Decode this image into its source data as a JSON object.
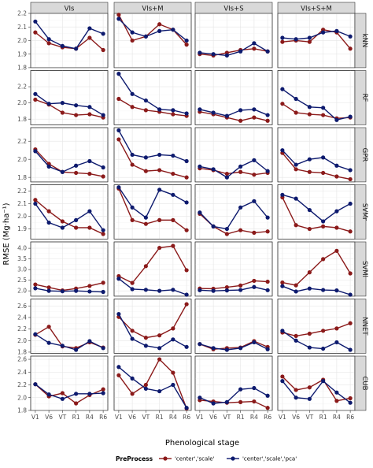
{
  "chart_data": {
    "type": "line",
    "xlabel": "Phenological stage",
    "ylabel": "RMSE (Mg·ha⁻¹)",
    "x": [
      "V1",
      "V6",
      "VT",
      "R1",
      "R4",
      "R6"
    ],
    "columns": [
      "VIs",
      "VIs+M",
      "VIs+S",
      "VIs+S+M"
    ],
    "legend": {
      "title": "PreProcess",
      "position": "bottom",
      "entries": [
        {
          "label": "'center','scale'",
          "color": "#8b1a1a"
        },
        {
          "label": "'center','scale','pca'",
          "color": "#0d1a6e"
        }
      ]
    },
    "rows": [
      {
        "label": "kNN",
        "ylim": [
          1.8,
          2.2
        ],
        "yticks": [
          "1.8",
          "1.9",
          "2.0",
          "2.1",
          "2.2"
        ],
        "panels": [
          {
            "series": [
              {
                "values": [
                  2.06,
                  1.98,
                  1.95,
                  1.94,
                  2.02,
                  1.93
                ]
              },
              {
                "values": [
                  2.14,
                  2.01,
                  1.96,
                  1.94,
                  2.09,
                  2.05
                ]
              }
            ]
          },
          {
            "series": [
              {
                "values": [
                  2.19,
                  2.0,
                  2.03,
                  2.12,
                  2.08,
                  1.97
                ]
              },
              {
                "values": [
                  2.16,
                  2.06,
                  2.03,
                  2.07,
                  2.08,
                  2.0
                ]
              }
            ]
          },
          {
            "series": [
              {
                "values": [
                  1.9,
                  1.89,
                  1.91,
                  1.93,
                  1.94,
                  1.92
                ]
              },
              {
                "values": [
                  1.91,
                  1.9,
                  1.89,
                  1.92,
                  1.98,
                  1.92
                ]
              }
            ]
          },
          {
            "series": [
              {
                "values": [
                  1.99,
                  2.0,
                  1.99,
                  2.08,
                  2.06,
                  1.94
                ]
              },
              {
                "values": [
                  2.02,
                  2.01,
                  2.02,
                  2.06,
                  2.07,
                  2.03
                ]
              }
            ]
          }
        ]
      },
      {
        "label": "RF",
        "ylim": [
          1.73,
          2.4
        ],
        "yticks": [
          "1.8",
          "2.0",
          "2.2"
        ],
        "panels": [
          {
            "series": [
              {
                "values": [
                  2.04,
                  1.98,
                  1.88,
                  1.85,
                  1.86,
                  1.82
                ]
              },
              {
                "values": [
                  2.11,
                  1.99,
                  2.0,
                  1.97,
                  1.95,
                  1.85
                ]
              }
            ]
          },
          {
            "series": [
              {
                "values": [
                  2.05,
                  1.95,
                  1.91,
                  1.89,
                  1.86,
                  1.84
                ]
              },
              {
                "values": [
                  2.36,
                  2.11,
                  2.03,
                  1.92,
                  1.91,
                  1.87
                ]
              }
            ]
          },
          {
            "series": [
              {
                "values": [
                  1.89,
                  1.86,
                  1.82,
                  1.78,
                  1.82,
                  1.78
                ]
              },
              {
                "values": [
                  1.92,
                  1.88,
                  1.84,
                  1.91,
                  1.92,
                  1.85
                ]
              }
            ]
          },
          {
            "series": [
              {
                "values": [
                  1.99,
                  1.88,
                  1.86,
                  1.85,
                  1.81,
                  1.82
                ]
              },
              {
                "values": [
                  2.17,
                  2.05,
                  1.95,
                  1.94,
                  1.79,
                  1.83
                ]
              }
            ]
          }
        ]
      },
      {
        "label": "GPR",
        "ylim": [
          1.75,
          2.35
        ],
        "yticks": [
          "1.8",
          "2.0",
          "2.2"
        ],
        "panels": [
          {
            "series": [
              {
                "values": [
                  2.11,
                  1.95,
                  1.86,
                  1.85,
                  1.84,
                  1.81
                ]
              },
              {
                "values": [
                  2.09,
                  1.92,
                  1.86,
                  1.93,
                  1.98,
                  1.91
                ]
              }
            ]
          },
          {
            "series": [
              {
                "values": [
                  2.22,
                  1.94,
                  1.87,
                  1.88,
                  1.84,
                  1.8
                ]
              },
              {
                "values": [
                  2.32,
                  2.05,
                  2.02,
                  2.05,
                  2.04,
                  1.98
                ]
              }
            ]
          },
          {
            "series": [
              {
                "values": [
                  1.9,
                  1.88,
                  1.84,
                  1.86,
                  1.83,
                  1.85
                ]
              },
              {
                "values": [
                  1.92,
                  1.89,
                  1.8,
                  1.92,
                  1.99,
                  1.87
                ]
              }
            ]
          },
          {
            "series": [
              {
                "values": [
                  2.07,
                  1.89,
                  1.86,
                  1.85,
                  1.81,
                  1.78
                ]
              },
              {
                "values": [
                  2.1,
                  1.94,
                  2.0,
                  2.02,
                  1.93,
                  1.88
                ]
              }
            ]
          }
        ]
      },
      {
        "label": "SVMr",
        "ylim": [
          1.82,
          2.25
        ],
        "yticks": [
          "1.9",
          "2.0",
          "2.1",
          "2.2"
        ],
        "panels": [
          {
            "series": [
              {
                "values": [
                  2.13,
                  2.04,
                  1.96,
                  1.91,
                  1.91,
                  1.86
                ]
              },
              {
                "values": [
                  2.1,
                  1.95,
                  1.91,
                  1.97,
                  2.04,
                  1.89
                ]
              }
            ]
          },
          {
            "series": [
              {
                "values": [
                  2.22,
                  1.97,
                  1.94,
                  1.97,
                  1.97,
                  1.89
                ]
              },
              {
                "values": [
                  2.23,
                  2.07,
                  1.99,
                  2.21,
                  2.17,
                  2.11
                ]
              }
            ]
          },
          {
            "series": [
              {
                "values": [
                  2.02,
                  1.92,
                  1.86,
                  1.89,
                  1.87,
                  1.88
                ]
              },
              {
                "values": [
                  2.03,
                  1.92,
                  1.9,
                  2.07,
                  2.12,
                  1.99
                ]
              }
            ]
          },
          {
            "series": [
              {
                "values": [
                  2.15,
                  1.93,
                  1.9,
                  1.92,
                  1.91,
                  1.88
                ]
              },
              {
                "values": [
                  2.17,
                  2.14,
                  2.05,
                  1.96,
                  2.04,
                  2.1
                ]
              }
            ]
          }
        ]
      },
      {
        "label": "SVMl",
        "ylim": [
          1.75,
          4.3
        ],
        "yticks": [
          "2.0",
          "2.5",
          "3.0",
          "3.5",
          "4.0"
        ],
        "panels": [
          {
            "series": [
              {
                "values": [
                  2.3,
                  2.16,
                  2.02,
                  2.11,
                  2.23,
                  2.38
                ]
              },
              {
                "values": [
                  2.12,
                  2.0,
                  1.98,
                  2.0,
                  1.97,
                  1.95
                ]
              }
            ]
          },
          {
            "series": [
              {
                "values": [
                  2.69,
                  2.37,
                  3.16,
                  4.02,
                  4.11,
                  2.97
                ]
              },
              {
                "values": [
                  2.57,
                  2.08,
                  2.05,
                  2.0,
                  2.05,
                  1.82
                ]
              }
            ]
          },
          {
            "series": [
              {
                "values": [
                  2.11,
                  2.1,
                  2.17,
                  2.25,
                  2.47,
                  2.43
                ]
              },
              {
                "values": [
                  2.03,
                  2.0,
                  2.02,
                  2.04,
                  2.18,
                  2.03
                ]
              }
            ]
          },
          {
            "series": [
              {
                "values": [
                  2.39,
                  2.26,
                  2.87,
                  3.49,
                  3.88,
                  2.82
                ]
              },
              {
                "values": [
                  2.22,
                  1.97,
                  2.11,
                  2.04,
                  2.02,
                  1.82
                ]
              }
            ]
          }
        ]
      },
      {
        "label": "NNET",
        "ylim": [
          1.78,
          2.72
        ],
        "yticks": [
          "1.8",
          "2.0",
          "2.2",
          "2.4",
          "2.6"
        ],
        "panels": [
          {
            "series": [
              {
                "values": [
                  2.1,
                  2.24,
                  1.9,
                  1.87,
                  1.97,
                  1.88
                ]
              },
              {
                "values": [
                  2.11,
                  1.96,
                  1.91,
                  1.84,
                  1.99,
                  1.87
                ]
              }
            ]
          },
          {
            "series": [
              {
                "values": [
                  2.41,
                  2.17,
                  2.05,
                  2.09,
                  2.21,
                  2.63
                ]
              },
              {
                "values": [
                  2.46,
                  2.03,
                  1.91,
                  1.87,
                  2.02,
                  1.89
                ]
              }
            ]
          },
          {
            "series": [
              {
                "values": [
                  1.94,
                  1.85,
                  1.87,
                  1.88,
                  1.99,
                  1.89
                ]
              },
              {
                "values": [
                  1.94,
                  1.87,
                  1.84,
                  1.87,
                  1.97,
                  1.85
                ]
              }
            ]
          },
          {
            "series": [
              {
                "values": [
                  2.14,
                  2.08,
                  2.12,
                  2.17,
                  2.21,
                  2.3
                ]
              },
              {
                "values": [
                  2.17,
                  2.0,
                  1.88,
                  1.86,
                  1.97,
                  1.84
                ]
              }
            ]
          }
        ]
      },
      {
        "label": "CUB",
        "ylim": [
          1.8,
          2.65
        ],
        "yticks": [
          "1.8",
          "2.0",
          "2.2",
          "2.4",
          "2.6"
        ],
        "panels": [
          {
            "series": [
              {
                "values": [
                  2.21,
                  2.02,
                  2.07,
                  1.91,
                  2.04,
                  2.13
                ]
              },
              {
                "values": [
                  2.21,
                  2.05,
                  1.98,
                  2.06,
                  2.06,
                  2.07
                ]
              }
            ]
          },
          {
            "series": [
              {
                "values": [
                  2.35,
                  2.06,
                  2.2,
                  2.6,
                  2.39,
                  1.83
                ]
              },
              {
                "values": [
                  2.48,
                  2.3,
                  2.14,
                  2.1,
                  2.2,
                  1.84
                ]
              }
            ]
          },
          {
            "series": [
              {
                "values": [
                  1.96,
                  1.94,
                  1.92,
                  1.93,
                  1.94,
                  1.84
                ]
              },
              {
                "values": [
                  2.0,
                  1.91,
                  1.93,
                  2.13,
                  2.15,
                  2.03
                ]
              }
            ]
          },
          {
            "series": [
              {
                "values": [
                  2.33,
                  2.12,
                  2.16,
                  2.28,
                  1.95,
                  1.99
                ]
              },
              {
                "values": [
                  2.26,
                  2.0,
                  1.98,
                  2.26,
                  2.08,
                  1.92
                ]
              }
            ]
          }
        ]
      }
    ]
  }
}
